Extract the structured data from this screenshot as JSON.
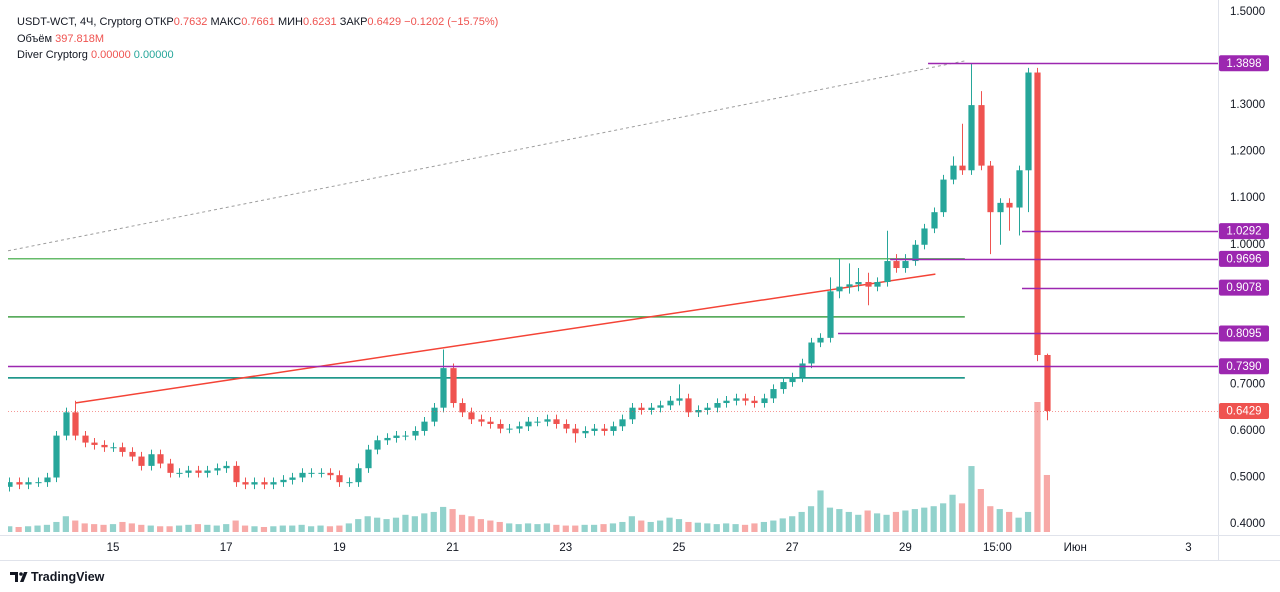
{
  "header": {
    "symbol": "USDT-WCT, 4Ч, Cryptorg",
    "fields": [
      {
        "label": "ОТКР",
        "value": "0.7632"
      },
      {
        "label": "МАКС",
        "value": "0.7661"
      },
      {
        "label": "МИН",
        "value": "0.6231"
      },
      {
        "label": "ЗАКР",
        "value": "0.6429"
      }
    ],
    "change": "−0.1202 (−15.75%)",
    "volume_label": "Объём",
    "volume_value": "397.818M",
    "indicator": "Diver Cryptorg",
    "indicator_values": [
      "0.00000",
      "0.00000"
    ]
  },
  "footer": {
    "brand": "TradingView"
  },
  "chart_data": {
    "type": "candlestick",
    "grid": false,
    "colors": {
      "up": "#26a69a",
      "down": "#ef5350"
    },
    "xlim": [
      13.145,
      34.523
    ],
    "ylim": [
      0.3765,
      1.5258
    ],
    "xticks": [
      15,
      17,
      19,
      21,
      23,
      25,
      27,
      29,
      {
        "value": 30.625,
        "label": "15:00"
      },
      {
        "value": 32,
        "label": "Июн"
      },
      {
        "value": 34,
        "label": "3"
      }
    ],
    "yticks": [
      {
        "value": 0.4,
        "label": "0.4000"
      },
      {
        "value": 0.5,
        "label": "0.5000"
      },
      {
        "value": 0.6,
        "label": "0.6000"
      },
      {
        "value": 0.7,
        "label": "0.7000"
      },
      {
        "value": 1.0,
        "label": "1.0000"
      },
      {
        "value": 1.1,
        "label": "1.1000"
      },
      {
        "value": 1.2,
        "label": "1.2000"
      },
      {
        "value": 1.3,
        "label": "1.3000"
      },
      {
        "value": 1.5,
        "label": "1.5000"
      }
    ],
    "x": [
      13.167,
      13.333,
      13.5,
      13.667,
      13.833,
      14,
      14.167,
      14.333,
      14.5,
      14.667,
      14.833,
      15,
      15.167,
      15.333,
      15.5,
      15.667,
      15.833,
      16,
      16.167,
      16.333,
      16.5,
      16.667,
      16.833,
      17,
      17.167,
      17.333,
      17.5,
      17.667,
      17.833,
      18,
      18.167,
      18.333,
      18.5,
      18.667,
      18.833,
      19,
      19.167,
      19.333,
      19.5,
      19.667,
      19.833,
      20,
      20.167,
      20.333,
      20.5,
      20.667,
      20.833,
      21,
      21.167,
      21.333,
      21.5,
      21.667,
      21.833,
      22,
      22.167,
      22.333,
      22.5,
      22.667,
      22.833,
      23,
      23.167,
      23.333,
      23.5,
      23.667,
      23.833,
      24,
      24.167,
      24.333,
      24.5,
      24.667,
      24.833,
      25,
      25.167,
      25.333,
      25.5,
      25.667,
      25.833,
      26,
      26.167,
      26.333,
      26.5,
      26.667,
      26.833,
      27,
      27.167,
      27.333,
      27.5,
      27.667,
      27.833,
      28,
      28.167,
      28.333,
      28.5,
      28.667,
      28.833,
      29,
      29.167,
      29.333,
      29.5,
      29.667,
      29.833,
      30,
      30.167,
      30.333,
      30.5,
      30.667,
      30.833,
      31,
      31.167,
      31.333,
      31.5
    ],
    "open": [
      0.48,
      0.49,
      0.485,
      0.49,
      0.49,
      0.5,
      0.59,
      0.64,
      0.59,
      0.575,
      0.57,
      0.565,
      0.565,
      0.555,
      0.545,
      0.525,
      0.55,
      0.53,
      0.51,
      0.51,
      0.515,
      0.51,
      0.515,
      0.52,
      0.525,
      0.49,
      0.485,
      0.49,
      0.485,
      0.49,
      0.495,
      0.5,
      0.51,
      0.51,
      0.51,
      0.505,
      0.49,
      0.49,
      0.52,
      0.56,
      0.58,
      0.585,
      0.59,
      0.59,
      0.6,
      0.62,
      0.65,
      0.735,
      0.66,
      0.64,
      0.625,
      0.62,
      0.615,
      0.605,
      0.605,
      0.61,
      0.62,
      0.62,
      0.625,
      0.615,
      0.605,
      0.595,
      0.6,
      0.605,
      0.6,
      0.61,
      0.625,
      0.65,
      0.645,
      0.65,
      0.655,
      0.665,
      0.67,
      0.64,
      0.645,
      0.65,
      0.66,
      0.665,
      0.67,
      0.665,
      0.66,
      0.67,
      0.69,
      0.705,
      0.715,
      0.745,
      0.79,
      0.8,
      0.9,
      0.91,
      0.915,
      0.92,
      0.91,
      0.92,
      0.965,
      0.95,
      0.965,
      1.0,
      1.035,
      1.07,
      1.14,
      1.17,
      1.16,
      1.3,
      1.17,
      1.07,
      1.09,
      1.08,
      1.16,
      1.37,
      0.7632
    ],
    "high": [
      0.5,
      0.5,
      0.5,
      0.5,
      0.51,
      0.6,
      0.65,
      0.665,
      0.6,
      0.585,
      0.58,
      0.575,
      0.575,
      0.565,
      0.555,
      0.56,
      0.56,
      0.54,
      0.52,
      0.525,
      0.525,
      0.525,
      0.53,
      0.535,
      0.535,
      0.5,
      0.5,
      0.5,
      0.5,
      0.505,
      0.51,
      0.52,
      0.52,
      0.52,
      0.52,
      0.515,
      0.5,
      0.53,
      0.57,
      0.59,
      0.595,
      0.6,
      0.6,
      0.61,
      0.63,
      0.66,
      0.775,
      0.745,
      0.67,
      0.65,
      0.635,
      0.63,
      0.625,
      0.615,
      0.62,
      0.63,
      0.63,
      0.635,
      0.635,
      0.625,
      0.615,
      0.61,
      0.615,
      0.615,
      0.62,
      0.635,
      0.66,
      0.66,
      0.66,
      0.665,
      0.675,
      0.7,
      0.68,
      0.655,
      0.66,
      0.67,
      0.675,
      0.68,
      0.68,
      0.675,
      0.68,
      0.7,
      0.715,
      0.725,
      0.755,
      0.8,
      0.81,
      0.93,
      0.97,
      0.96,
      0.95,
      0.94,
      0.93,
      1.03,
      0.98,
      0.98,
      1.01,
      1.045,
      1.08,
      1.15,
      1.19,
      1.26,
      1.39,
      1.33,
      1.18,
      1.1,
      1.1,
      1.17,
      1.38,
      1.38,
      0.7661
    ],
    "low": [
      0.47,
      0.475,
      0.475,
      0.48,
      0.48,
      0.49,
      0.58,
      0.58,
      0.565,
      0.56,
      0.555,
      0.555,
      0.545,
      0.535,
      0.515,
      0.515,
      0.52,
      0.5,
      0.5,
      0.5,
      0.5,
      0.5,
      0.505,
      0.51,
      0.48,
      0.475,
      0.475,
      0.475,
      0.475,
      0.48,
      0.485,
      0.49,
      0.5,
      0.5,
      0.495,
      0.48,
      0.48,
      0.48,
      0.51,
      0.55,
      0.57,
      0.575,
      0.58,
      0.58,
      0.59,
      0.61,
      0.64,
      0.65,
      0.63,
      0.615,
      0.61,
      0.605,
      0.595,
      0.595,
      0.595,
      0.6,
      0.61,
      0.61,
      0.605,
      0.595,
      0.575,
      0.585,
      0.59,
      0.59,
      0.59,
      0.6,
      0.615,
      0.635,
      0.635,
      0.64,
      0.645,
      0.655,
      0.63,
      0.63,
      0.635,
      0.64,
      0.65,
      0.655,
      0.655,
      0.65,
      0.65,
      0.66,
      0.68,
      0.695,
      0.705,
      0.735,
      0.78,
      0.79,
      0.885,
      0.895,
      0.9,
      0.87,
      0.9,
      0.91,
      0.94,
      0.94,
      0.955,
      0.99,
      1.025,
      1.06,
      1.13,
      1.15,
      1.15,
      1.16,
      0.98,
      1.0,
      1.03,
      1.02,
      1.07,
      0.75,
      0.6231
    ],
    "close": [
      0.49,
      0.485,
      0.49,
      0.49,
      0.5,
      0.59,
      0.64,
      0.59,
      0.575,
      0.57,
      0.565,
      0.565,
      0.555,
      0.545,
      0.525,
      0.55,
      0.53,
      0.51,
      0.51,
      0.515,
      0.51,
      0.515,
      0.52,
      0.525,
      0.49,
      0.485,
      0.49,
      0.485,
      0.49,
      0.495,
      0.5,
      0.51,
      0.51,
      0.51,
      0.505,
      0.49,
      0.49,
      0.52,
      0.56,
      0.58,
      0.585,
      0.59,
      0.59,
      0.6,
      0.62,
      0.65,
      0.735,
      0.66,
      0.64,
      0.625,
      0.62,
      0.615,
      0.605,
      0.605,
      0.61,
      0.62,
      0.62,
      0.625,
      0.615,
      0.605,
      0.595,
      0.6,
      0.605,
      0.6,
      0.61,
      0.625,
      0.65,
      0.645,
      0.65,
      0.655,
      0.665,
      0.67,
      0.64,
      0.645,
      0.65,
      0.66,
      0.665,
      0.67,
      0.665,
      0.66,
      0.67,
      0.69,
      0.705,
      0.715,
      0.745,
      0.79,
      0.8,
      0.9,
      0.91,
      0.915,
      0.92,
      0.91,
      0.92,
      0.965,
      0.95,
      0.965,
      1.0,
      1.035,
      1.07,
      1.14,
      1.17,
      1.16,
      1.3,
      1.17,
      1.07,
      1.09,
      1.08,
      1.16,
      1.37,
      0.7632,
      0.6429
    ],
    "volume": [
      40,
      35,
      40,
      45,
      50,
      70,
      110,
      80,
      60,
      55,
      50,
      55,
      70,
      60,
      50,
      45,
      40,
      40,
      45,
      50,
      55,
      50,
      45,
      55,
      80,
      45,
      40,
      35,
      40,
      45,
      45,
      50,
      40,
      45,
      40,
      45,
      60,
      90,
      110,
      100,
      90,
      100,
      120,
      110,
      130,
      140,
      175,
      160,
      120,
      110,
      90,
      80,
      70,
      60,
      55,
      60,
      55,
      60,
      50,
      45,
      45,
      50,
      50,
      55,
      60,
      70,
      110,
      80,
      70,
      80,
      100,
      90,
      70,
      65,
      60,
      55,
      60,
      55,
      50,
      60,
      70,
      80,
      95,
      110,
      140,
      180,
      290,
      170,
      160,
      140,
      120,
      150,
      130,
      120,
      140,
      150,
      160,
      170,
      180,
      200,
      260,
      200,
      460,
      300,
      180,
      160,
      140,
      100,
      140,
      907,
      397.818
    ],
    "current_price": 0.6429,
    "levels": [
      {
        "price": 1.3898,
        "from": 29.4
      },
      {
        "price": 1.0292,
        "from": 31.06
      },
      {
        "price": 0.9696,
        "from": 28.73
      },
      {
        "price": 0.9078,
        "from": 31.06
      },
      {
        "price": 0.8095,
        "from": 27.81
      },
      {
        "price": 0.739,
        "label": "0.7390",
        "from": 13.145
      }
    ],
    "level_color": "#9c27b0",
    "lines": [
      {
        "x1": 13.145,
        "y1": 0.97,
        "x2": 30.05,
        "y2": 0.97,
        "color": "#66bb6a",
        "dash": false
      },
      {
        "x1": 13.145,
        "y1": 0.845,
        "x2": 30.05,
        "y2": 0.845,
        "color": "#43a047",
        "dash": false
      },
      {
        "x1": 13.145,
        "y1": 0.714,
        "x2": 30.05,
        "y2": 0.714,
        "color": "#00897b",
        "dash": false
      },
      {
        "x1": 14.33,
        "y1": 0.66,
        "x2": 29.53,
        "y2": 0.937,
        "color": "#f44336",
        "dash": false
      },
      {
        "x1": 13.145,
        "y1": 0.987,
        "x2": 30.05,
        "y2": 1.395,
        "color": "#9e9e9e",
        "dash": true
      }
    ]
  }
}
